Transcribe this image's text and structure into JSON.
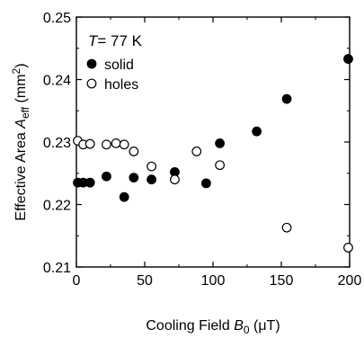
{
  "chart_data": {
    "type": "scatter",
    "annotation": {
      "prefix": "T",
      "value": "= 77 K"
    },
    "xlabel": {
      "main": "Cooling Field ",
      "sym": "B",
      "sub": "0",
      "unit": " (μT)"
    },
    "ylabel": {
      "main": "Effective Area ",
      "sym": "A",
      "sub": "eff",
      "unit": " (mm",
      "sup": "2",
      "close": ")"
    },
    "xlim": [
      0,
      200
    ],
    "ylim": [
      0.21,
      0.25
    ],
    "xticks": [
      0,
      50,
      100,
      150,
      200
    ],
    "xtick_labels": [
      "0",
      "50",
      "100",
      "150",
      "200"
    ],
    "yticks": [
      0.21,
      0.22,
      0.23,
      0.24,
      0.25
    ],
    "ytick_labels": [
      "0.21",
      "0.22",
      "0.23",
      "0.24",
      "0.25"
    ],
    "legend_position": "top-left",
    "grid": false,
    "series": [
      {
        "name": "solid",
        "marker": "filled-circle",
        "color": "#000000",
        "points": [
          {
            "x": 1,
            "y": 0.2235
          },
          {
            "x": 5,
            "y": 0.2235
          },
          {
            "x": 10,
            "y": 0.2235
          },
          {
            "x": 22,
            "y": 0.2245
          },
          {
            "x": 35,
            "y": 0.2212
          },
          {
            "x": 42,
            "y": 0.2243
          },
          {
            "x": 55,
            "y": 0.224
          },
          {
            "x": 72,
            "y": 0.2252
          },
          {
            "x": 95,
            "y": 0.2234
          },
          {
            "x": 105,
            "y": 0.2298
          },
          {
            "x": 132,
            "y": 0.2317
          },
          {
            "x": 154,
            "y": 0.2369
          },
          {
            "x": 199,
            "y": 0.2433
          }
        ]
      },
      {
        "name": "holes",
        "marker": "open-circle",
        "color": "#000000",
        "points": [
          {
            "x": 1,
            "y": 0.2302
          },
          {
            "x": 5,
            "y": 0.2296
          },
          {
            "x": 10,
            "y": 0.2297
          },
          {
            "x": 22,
            "y": 0.2296
          },
          {
            "x": 29,
            "y": 0.2298
          },
          {
            "x": 35,
            "y": 0.2296
          },
          {
            "x": 42,
            "y": 0.2285
          },
          {
            "x": 55,
            "y": 0.2261
          },
          {
            "x": 72,
            "y": 0.224
          },
          {
            "x": 88,
            "y": 0.2285
          },
          {
            "x": 105,
            "y": 0.2263
          },
          {
            "x": 154,
            "y": 0.2163
          },
          {
            "x": 199,
            "y": 0.2131
          }
        ]
      }
    ]
  }
}
